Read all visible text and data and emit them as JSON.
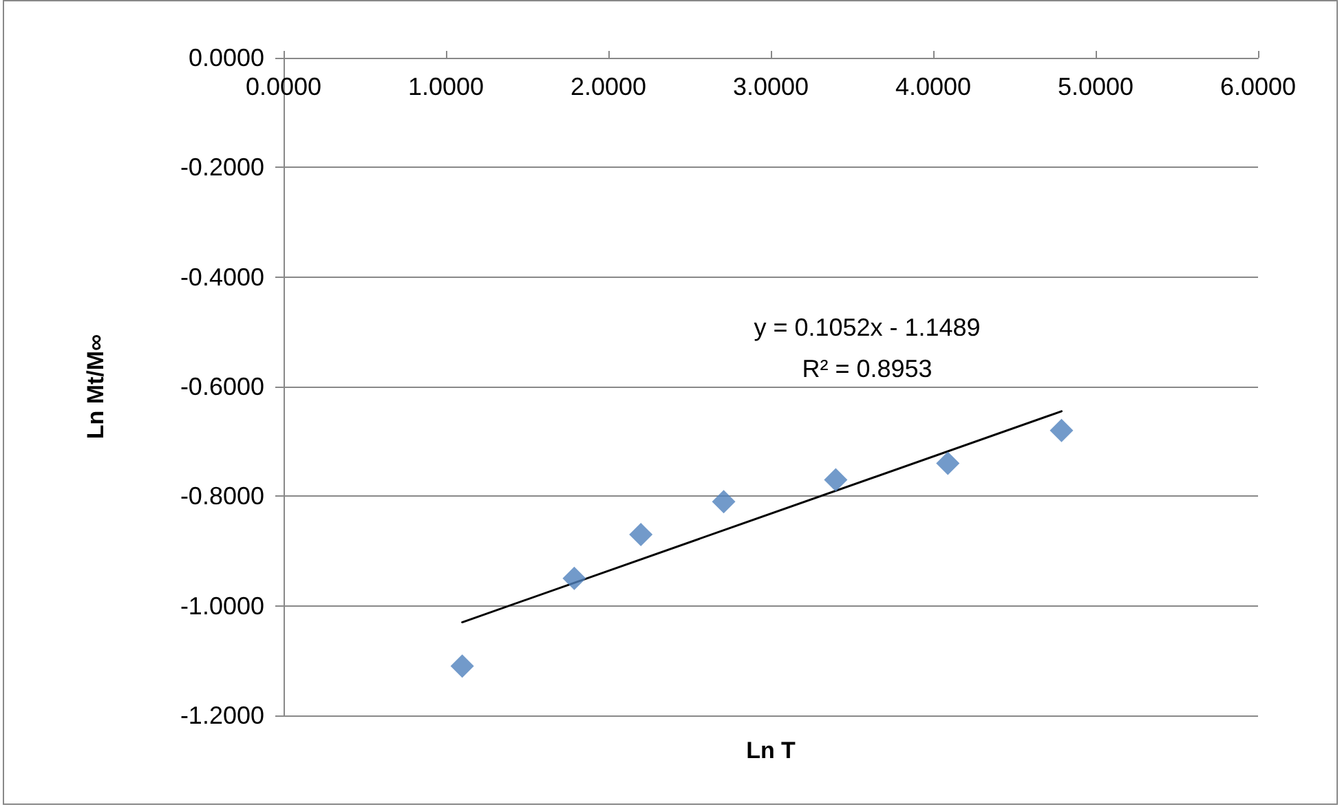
{
  "chart_data": {
    "type": "scatter",
    "xlabel": "Ln T",
    "ylabel": "Ln Mt/M∞",
    "x": [
      1.1,
      1.79,
      2.2,
      2.71,
      3.4,
      4.09,
      4.79
    ],
    "series": [
      {
        "color": "#4f81bd",
        "values": [
          -1.11,
          -0.95,
          -0.87,
          -0.81,
          -0.77,
          -0.74,
          -0.68
        ]
      },
      {
        "type": "line",
        "color": "#000000",
        "x": [
          1.1,
          4.79
        ],
        "values": [
          -1.03,
          -0.645
        ],
        "marker": "none"
      }
    ],
    "xlim": [
      0,
      6
    ],
    "xticks": [
      {
        "value": 0,
        "label": "0.0000"
      },
      {
        "value": 1,
        "label": "1.0000"
      },
      {
        "value": 2,
        "label": "2.0000"
      },
      {
        "value": 3,
        "label": "3.0000"
      },
      {
        "value": 4,
        "label": "4.0000"
      },
      {
        "value": 5,
        "label": "5.0000"
      },
      {
        "value": 6,
        "label": "6.0000"
      }
    ],
    "ylim": [
      -1.2,
      0
    ],
    "yticks": [
      {
        "value": -1.2,
        "label": "-1.2000"
      },
      {
        "value": -1,
        "label": "-1.0000"
      },
      {
        "value": -0.8,
        "label": "-0.8000"
      },
      {
        "value": -0.6,
        "label": "-0.6000"
      },
      {
        "value": -0.4,
        "label": "-0.4000"
      },
      {
        "value": -0.2,
        "label": "-0.2000"
      },
      {
        "value": 0,
        "label": "0.0000"
      }
    ],
    "annotations": [
      "y = 0.1052x - 1.1489",
      "R² = 0.8953"
    ],
    "grid": "y",
    "marker": "diamond"
  }
}
